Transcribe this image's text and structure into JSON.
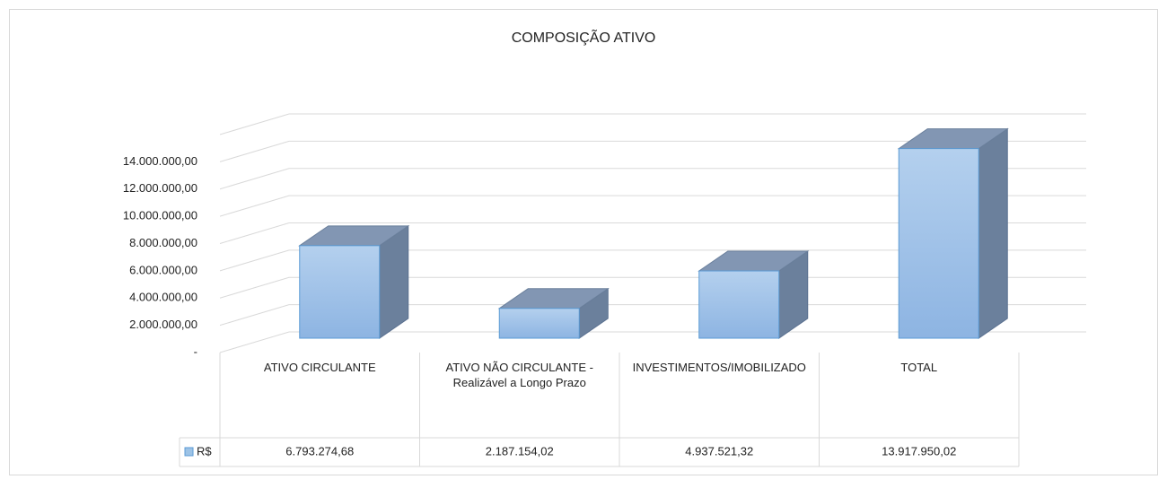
{
  "chart_data": {
    "type": "bar3d",
    "title": "COMPOSIÇÃO ATIVO",
    "categories": [
      "ATIVO CIRCULANTE",
      "ATIVO NÃO CIRCULANTE - Realizável a Longo Prazo",
      "INVESTIMENTOS/IMOBILIZADO",
      "TOTAL"
    ],
    "series": [
      {
        "name": "R$",
        "color": "#9dc3e6",
        "values": [
          6793274.68,
          2187154.02,
          4937521.32,
          13917950.02
        ],
        "value_labels": [
          "6.793.274,68",
          "2.187.154,02",
          "4.937.521,32",
          "13.917.950,02"
        ]
      }
    ],
    "ylim": [
      0,
      16000000
    ],
    "yticks": [
      {
        "value": 0,
        "label": "-"
      },
      {
        "value": 2000000,
        "label": "2.000.000,00"
      },
      {
        "value": 4000000,
        "label": "4.000.000,00"
      },
      {
        "value": 6000000,
        "label": "6.000.000,00"
      },
      {
        "value": 8000000,
        "label": "8.000.000,00"
      },
      {
        "value": 10000000,
        "label": "10.000.000,00"
      },
      {
        "value": 12000000,
        "label": "12.000.000,00"
      },
      {
        "value": 14000000,
        "label": "14.000.000,00"
      }
    ],
    "grid": true,
    "data_table": true
  }
}
